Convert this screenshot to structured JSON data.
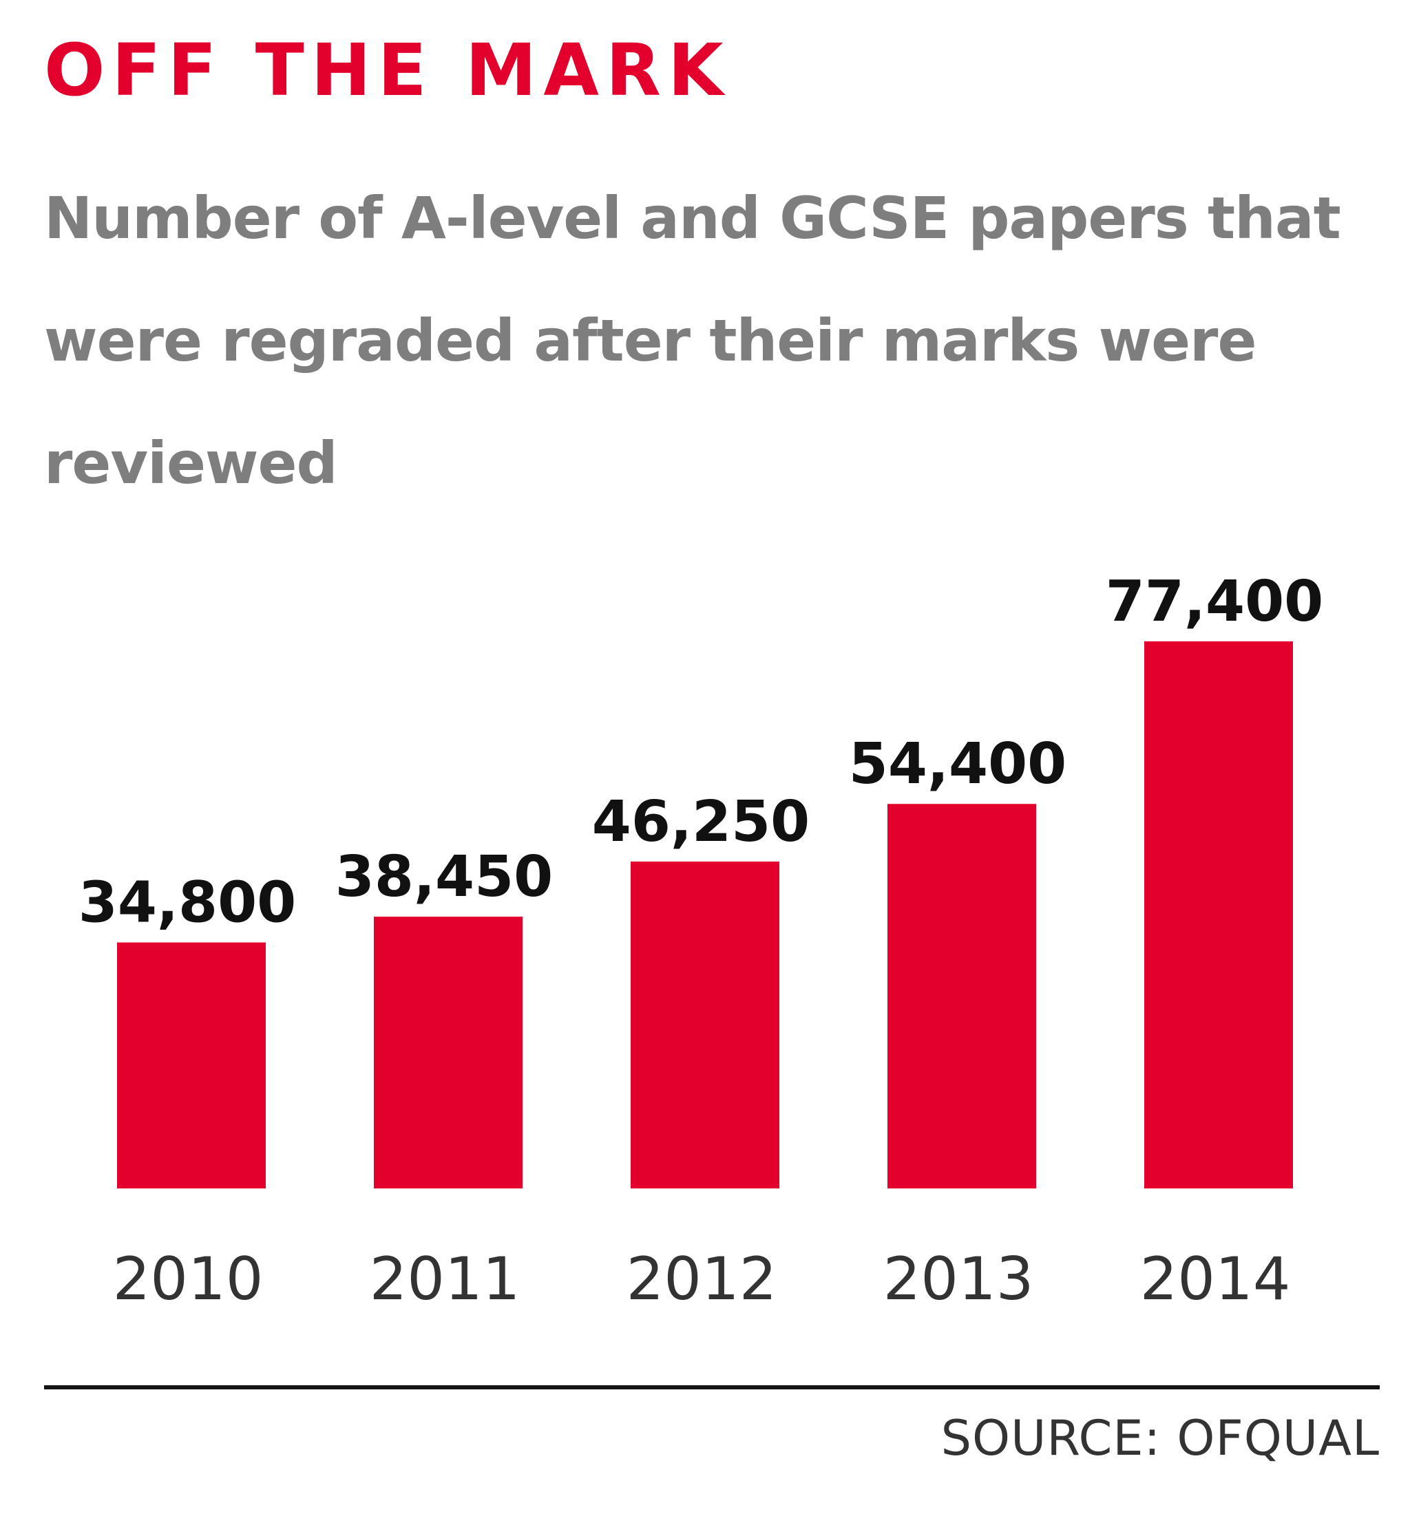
{
  "header": {
    "title": "OFF THE MARK",
    "subtitle": "Number of A-level and GCSE papers that were regraded after their marks were reviewed"
  },
  "footer": {
    "source": "SOURCE: OFQUAL"
  },
  "colors": {
    "accent": "#e3002c",
    "subtitle": "#7e7e7e",
    "value_label": "#111111",
    "tick_label": "#333333"
  },
  "chart_data": {
    "type": "bar",
    "title": "OFF THE MARK",
    "subtitle": "Number of A-level and GCSE papers that were regraded after their marks were reviewed",
    "xlabel": "",
    "ylabel": "",
    "grid": false,
    "legend": "none",
    "ylim": [
      0,
      77400
    ],
    "categories": [
      "2010",
      "2011",
      "2012",
      "2013",
      "2014"
    ],
    "values": [
      34800,
      38450,
      46250,
      54400,
      77400
    ],
    "value_labels": [
      "34,800",
      "38,450",
      "46,250",
      "54,400",
      "77,400"
    ],
    "source": "SOURCE: OFQUAL"
  }
}
